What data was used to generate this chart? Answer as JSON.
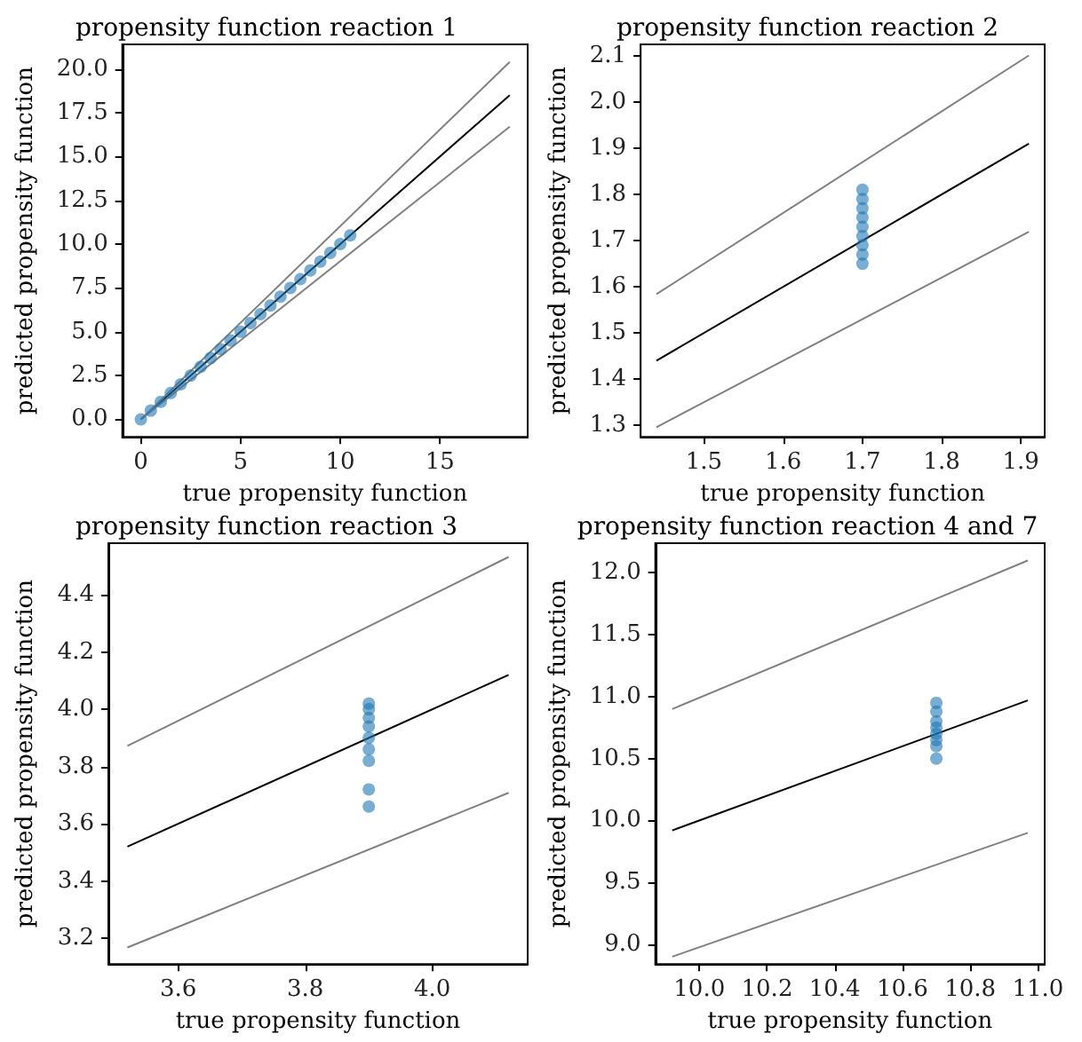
{
  "chart_data": [
    {
      "type": "scatter",
      "title": "propensity function reaction 1",
      "xlabel": "true propensity function",
      "ylabel": "predicted propensity function",
      "xlim": [
        -0.93,
        19.4
      ],
      "ylim": [
        -1,
        21.4
      ],
      "xticks": [
        0,
        5,
        10,
        15
      ],
      "yticks": [
        {
          "value": 0,
          "label": "0.0"
        },
        2.5,
        {
          "value": 5,
          "label": "5.0"
        },
        7.5,
        {
          "value": 10,
          "label": "10.0"
        },
        12.5,
        {
          "value": 15,
          "label": "15.0"
        },
        17.5,
        {
          "value": 20,
          "label": "20.0"
        }
      ],
      "grid": false,
      "series": [
        {
          "type": "scatter",
          "marker": "circle",
          "color": "#1f77b4",
          "x": [
            0,
            0.5,
            1,
            1.5,
            2,
            2.5,
            3,
            3.5,
            4,
            4.5,
            5,
            5.5,
            6,
            6.5,
            7,
            7.5,
            8,
            8.5,
            9,
            9.5,
            10,
            10.5
          ],
          "values": [
            0,
            0.5,
            1,
            1.5,
            2,
            2.5,
            3,
            3.5,
            4,
            4.5,
            5,
            5.5,
            6,
            6.5,
            7,
            7.5,
            8,
            8.5,
            9,
            9.5,
            10,
            10.5
          ]
        },
        {
          "type": "line",
          "marker": "none",
          "color": "#000000",
          "x": [
            0,
            18.5
          ],
          "values": [
            0,
            18.5
          ]
        },
        {
          "type": "line",
          "marker": "none",
          "color": "#808080",
          "x": [
            0,
            18.5
          ],
          "values": [
            0,
            20.4
          ]
        },
        {
          "type": "line",
          "marker": "none",
          "color": "#808080",
          "x": [
            0,
            18.5
          ],
          "values": [
            0,
            16.7
          ]
        }
      ]
    },
    {
      "type": "scatter",
      "title": "propensity function reaction 2",
      "xlabel": "true propensity function",
      "ylabel": "predicted propensity function",
      "xlim": [
        1.42,
        1.93
      ],
      "ylim": [
        1.275,
        2.125
      ],
      "xticks": [
        1.5,
        1.6,
        1.7,
        1.8,
        1.9
      ],
      "yticks": [
        1.3,
        1.4,
        1.5,
        1.6,
        1.7,
        1.8,
        1.9,
        {
          "value": 2,
          "label": "2.0"
        },
        2.1
      ],
      "grid": false,
      "series": [
        {
          "type": "scatter",
          "marker": "circle",
          "color": "#1f77b4",
          "x": [
            1.7,
            1.7,
            1.7,
            1.7,
            1.7,
            1.7,
            1.7,
            1.7,
            1.7
          ],
          "values": [
            1.65,
            1.67,
            1.69,
            1.71,
            1.73,
            1.75,
            1.77,
            1.79,
            1.81
          ]
        },
        {
          "type": "line",
          "marker": "none",
          "color": "#000000",
          "x": [
            1.44,
            1.91
          ],
          "values": [
            1.44,
            1.91
          ]
        },
        {
          "type": "line",
          "marker": "none",
          "color": "#808080",
          "x": [
            1.44,
            1.91
          ],
          "values": [
            1.584,
            2.101
          ]
        },
        {
          "type": "line",
          "marker": "none",
          "color": "#808080",
          "x": [
            1.44,
            1.91
          ],
          "values": [
            1.296,
            1.719
          ]
        }
      ]
    },
    {
      "type": "scatter",
      "title": "propensity function reaction 3",
      "xlabel": "true propensity function",
      "ylabel": "predicted propensity function",
      "xlim": [
        3.49,
        4.15
      ],
      "ylim": [
        3.11,
        4.58
      ],
      "xticks": [
        3.6,
        3.8,
        {
          "value": 4,
          "label": "4.0"
        }
      ],
      "yticks": [
        3.2,
        3.4,
        3.6,
        3.8,
        {
          "value": 4,
          "label": "4.0"
        },
        4.2,
        4.4
      ],
      "grid": false,
      "series": [
        {
          "type": "scatter",
          "marker": "circle",
          "color": "#1f77b4",
          "x": [
            3.9,
            3.9,
            3.9,
            3.9,
            3.9,
            3.9,
            3.9,
            3.9,
            3.9
          ],
          "values": [
            3.66,
            3.72,
            3.82,
            3.86,
            3.9,
            3.94,
            3.97,
            4,
            4.02
          ]
        },
        {
          "type": "line",
          "marker": "none",
          "color": "#000000",
          "x": [
            3.52,
            4.12
          ],
          "values": [
            3.52,
            4.12
          ]
        },
        {
          "type": "line",
          "marker": "none",
          "color": "#808080",
          "x": [
            3.52,
            4.12
          ],
          "values": [
            3.872,
            4.532
          ]
        },
        {
          "type": "line",
          "marker": "none",
          "color": "#808080",
          "x": [
            3.52,
            4.12
          ],
          "values": [
            3.168,
            3.708
          ]
        }
      ]
    },
    {
      "type": "scatter",
      "title": "propensity function reaction 4 and 7",
      "xlabel": "true propensity function",
      "ylabel": "predicted propensity function",
      "xlim": [
        9.87,
        11.02
      ],
      "ylim": [
        8.84,
        12.24
      ],
      "xticks": [
        {
          "value": 10,
          "label": "10.0"
        },
        10.2,
        10.4,
        10.6,
        10.8,
        {
          "value": 11,
          "label": "11.0"
        }
      ],
      "yticks": [
        {
          "value": 9,
          "label": "9.0"
        },
        9.5,
        {
          "value": 10,
          "label": "10.0"
        },
        10.5,
        {
          "value": 11,
          "label": "11.0"
        },
        11.5,
        {
          "value": 12,
          "label": "12.0"
        }
      ],
      "grid": false,
      "series": [
        {
          "type": "scatter",
          "marker": "circle",
          "color": "#1f77b4",
          "x": [
            10.7,
            10.7,
            10.7,
            10.7,
            10.7,
            10.7,
            10.7,
            10.7
          ],
          "values": [
            10.5,
            10.6,
            10.65,
            10.7,
            10.75,
            10.8,
            10.88,
            10.95
          ]
        },
        {
          "type": "line",
          "marker": "none",
          "color": "#000000",
          "x": [
            9.92,
            10.97
          ],
          "values": [
            9.92,
            10.97
          ]
        },
        {
          "type": "line",
          "marker": "none",
          "color": "#808080",
          "x": [
            9.92,
            10.97
          ],
          "values": [
            10.9,
            12.1
          ]
        },
        {
          "type": "line",
          "marker": "none",
          "color": "#808080",
          "x": [
            9.92,
            10.97
          ],
          "values": [
            8.9,
            9.9
          ]
        }
      ]
    }
  ]
}
